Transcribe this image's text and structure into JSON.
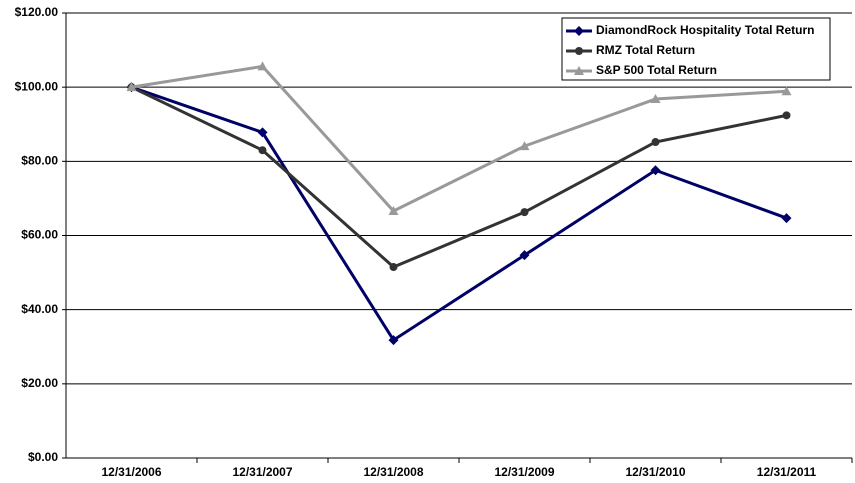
{
  "chart_data": {
    "type": "line",
    "categories": [
      "12/31/2006",
      "12/31/2007",
      "12/31/2008",
      "12/31/2009",
      "12/31/2010",
      "12/31/2011"
    ],
    "series": [
      {
        "name": "DiamondRock Hospitality Total Return",
        "color": "#000066",
        "marker": "diamond",
        "values": [
          100,
          87.8,
          31.8,
          54.7,
          77.6,
          64.7
        ]
      },
      {
        "name": "RMZ Total Return",
        "color": "#333333",
        "marker": "circle",
        "values": [
          100,
          83.0,
          51.5,
          66.3,
          85.2,
          92.4
        ]
      },
      {
        "name": "S&P 500 Total Return",
        "color": "#999999",
        "marker": "triangle",
        "values": [
          100,
          105.6,
          66.6,
          84.1,
          96.8,
          98.9
        ]
      }
    ],
    "ylim": [
      0,
      120
    ],
    "yticks": [
      {
        "value": 0,
        "label": "$0.00"
      },
      {
        "value": 20,
        "label": "$20.00"
      },
      {
        "value": 40,
        "label": "$40.00"
      },
      {
        "value": 60,
        "label": "$60.00"
      },
      {
        "value": 80,
        "label": "$80.00"
      },
      {
        "value": 100,
        "label": "$100.00"
      },
      {
        "value": 120,
        "label": "$120.00"
      }
    ],
    "grid": true,
    "legend": "top-right"
  }
}
